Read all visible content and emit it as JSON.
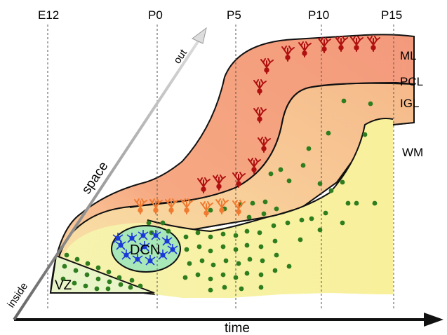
{
  "time_points": [
    "E12",
    "P0",
    "P5",
    "P10",
    "P15"
  ],
  "layers": {
    "ml": "ML",
    "pcl": "PCL",
    "igl": "IGL",
    "wm": "WM"
  },
  "axes": {
    "x_label": "time",
    "diag_label": "space",
    "diag_start": "inside",
    "diag_end": "out"
  },
  "regions": {
    "dcn": "DCN",
    "vz": "VZ"
  },
  "colors": {
    "ml": "#f4a07e",
    "igl": "#f8c98c",
    "wm": "#f7f0a2",
    "dcn": "#a8e8b8",
    "granule": "#2e7d1e",
    "purkinje_mature": "#b01010",
    "purkinje_young": "#f07a30",
    "dcn_neuron": "#1a3ad8"
  }
}
